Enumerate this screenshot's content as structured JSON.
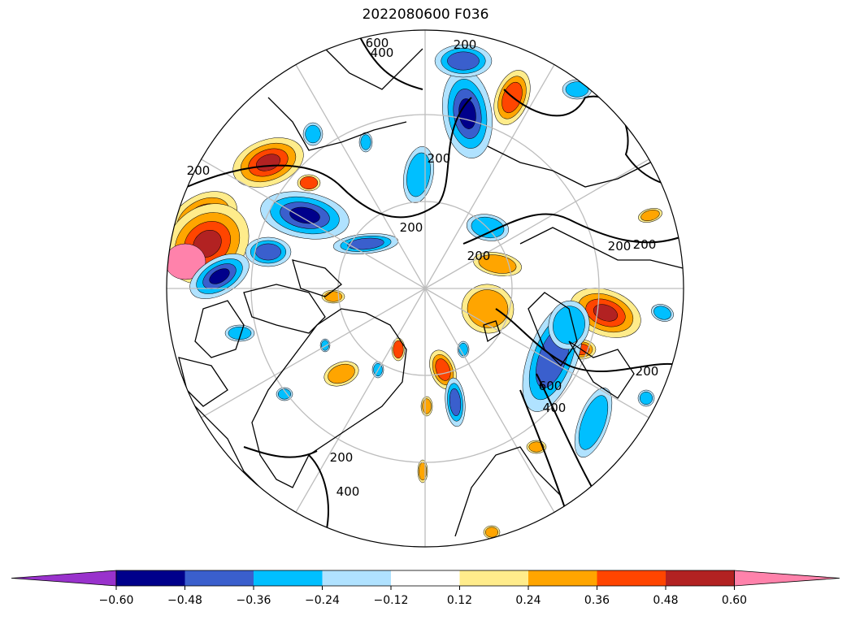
{
  "title": "2022080600 F036",
  "colormap": {
    "colors": [
      "#9932CC",
      "#00008B",
      "#3A5FCD",
      "#00BFFF",
      "#B0E2FF",
      "#FFFFFF",
      "#FFEC8B",
      "#FFA500",
      "#FF4500",
      "#B22222",
      "#FF82AB"
    ],
    "tick_labels": [
      "−0.60",
      "−0.48",
      "−0.36",
      "−0.24",
      "−0.12",
      "0.12",
      "0.24",
      "0.36",
      "0.48",
      "0.60"
    ],
    "extend": "both"
  },
  "contour_labels": [
    "600",
    "400",
    "200",
    "200",
    "200",
    "200",
    "200",
    "200",
    "200",
    "200",
    "200",
    "600",
    "400",
    "400"
  ],
  "map": {
    "projection": "north polar stereographic",
    "gridlines": true,
    "coastlines": true
  }
}
